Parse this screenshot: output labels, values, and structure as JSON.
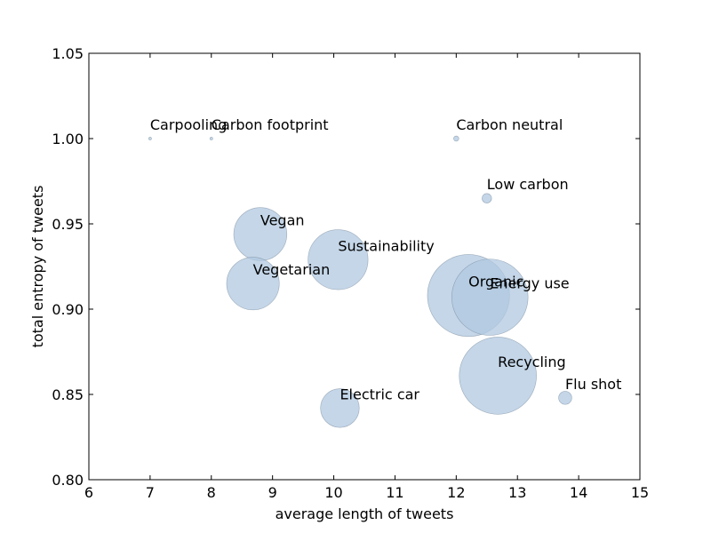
{
  "chart_data": {
    "type": "scatter",
    "title": "",
    "xlabel": "average length of tweets",
    "ylabel": "total entropy of tweets",
    "xlim": [
      6,
      15
    ],
    "ylim": [
      0.8,
      1.05
    ],
    "xticks": [
      "6",
      "7",
      "8",
      "9",
      "10",
      "11",
      "12",
      "13",
      "14",
      "15"
    ],
    "yticks": [
      "0.80",
      "0.85",
      "0.90",
      "0.95",
      "1.00",
      "1.05"
    ],
    "grid": false,
    "bubble_color": "#b0c8e0",
    "bubble_edge": "#6f8294",
    "points": [
      {
        "label": "Carpooling",
        "x": 7.0,
        "y": 1.0,
        "size": 1
      },
      {
        "label": "Carbon footprint",
        "x": 8.0,
        "y": 1.0,
        "size": 1
      },
      {
        "label": "Carbon neutral",
        "x": 12.0,
        "y": 1.0,
        "size": 6
      },
      {
        "label": "Low carbon",
        "x": 12.5,
        "y": 0.965,
        "size": 20
      },
      {
        "label": "Vegan",
        "x": 8.8,
        "y": 0.944,
        "size": 620
      },
      {
        "label": "Sustainability",
        "x": 10.07,
        "y": 0.929,
        "size": 790
      },
      {
        "label": "Vegetarian",
        "x": 8.68,
        "y": 0.915,
        "size": 610
      },
      {
        "label": "Organic",
        "x": 12.2,
        "y": 0.908,
        "size": 1480
      },
      {
        "label": "Energy use",
        "x": 12.55,
        "y": 0.907,
        "size": 1280
      },
      {
        "label": "Recycling",
        "x": 12.68,
        "y": 0.861,
        "size": 1310
      },
      {
        "label": "Flu shot",
        "x": 13.78,
        "y": 0.848,
        "size": 38
      },
      {
        "label": "Electric car",
        "x": 10.1,
        "y": 0.842,
        "size": 330
      }
    ]
  }
}
